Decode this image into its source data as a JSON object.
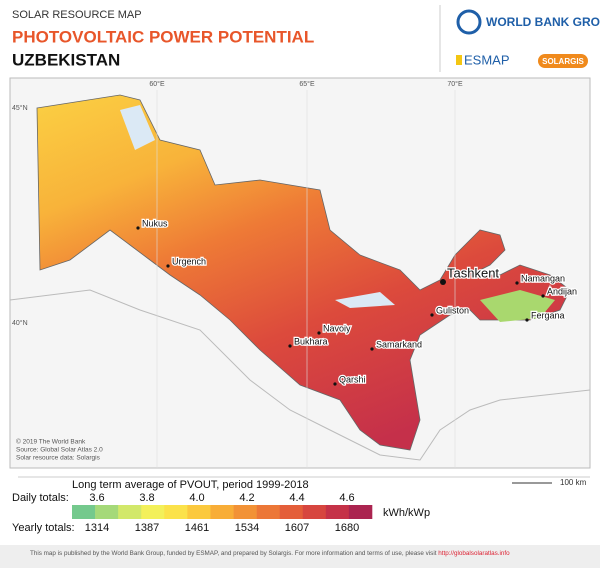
{
  "header": {
    "kicker": "SOLAR RESOURCE MAP",
    "title": "PHOTOVOLTAIC POWER POTENTIAL",
    "country": "UZBEKISTAN"
  },
  "logos": {
    "world_bank": "WORLD BANK GROUP",
    "esmap": "ESMAP",
    "solargis": "SOLARGIS"
  },
  "map": {
    "latitudes": [
      "45°N",
      "40°N"
    ],
    "longitudes": [
      "60°E",
      "65°E",
      "70°E"
    ],
    "cities": [
      "Nukus",
      "Urgench",
      "Tashkent",
      "Namangan",
      "Andijan",
      "Fergana",
      "Guliston",
      "Navoiy",
      "Bukhara",
      "Samarkand",
      "Qarshi"
    ],
    "credits": [
      "© 2019 The World Bank",
      "Source: Global Solar Atlas 2.0",
      "Solar resource data: Solargis"
    ],
    "scale": "100 km"
  },
  "legend": {
    "title": "Long term average of PVOUT, period 1999-2018",
    "daily_label": "Daily totals:",
    "daily": [
      "3.6",
      "3.8",
      "4.0",
      "4.2",
      "4.4",
      "4.6"
    ],
    "unit": "kWh/kWp",
    "yearly_label": "Yearly totals:",
    "yearly": [
      "1314",
      "1387",
      "1461",
      "1534",
      "1607",
      "1680"
    ]
  },
  "footer": {
    "text": "This map is published by the World Bank Group, funded by ESMAP, and prepared by Solargis. For more information and terms of use, please visit ",
    "link": "http://globalsolaratlas.info"
  }
}
